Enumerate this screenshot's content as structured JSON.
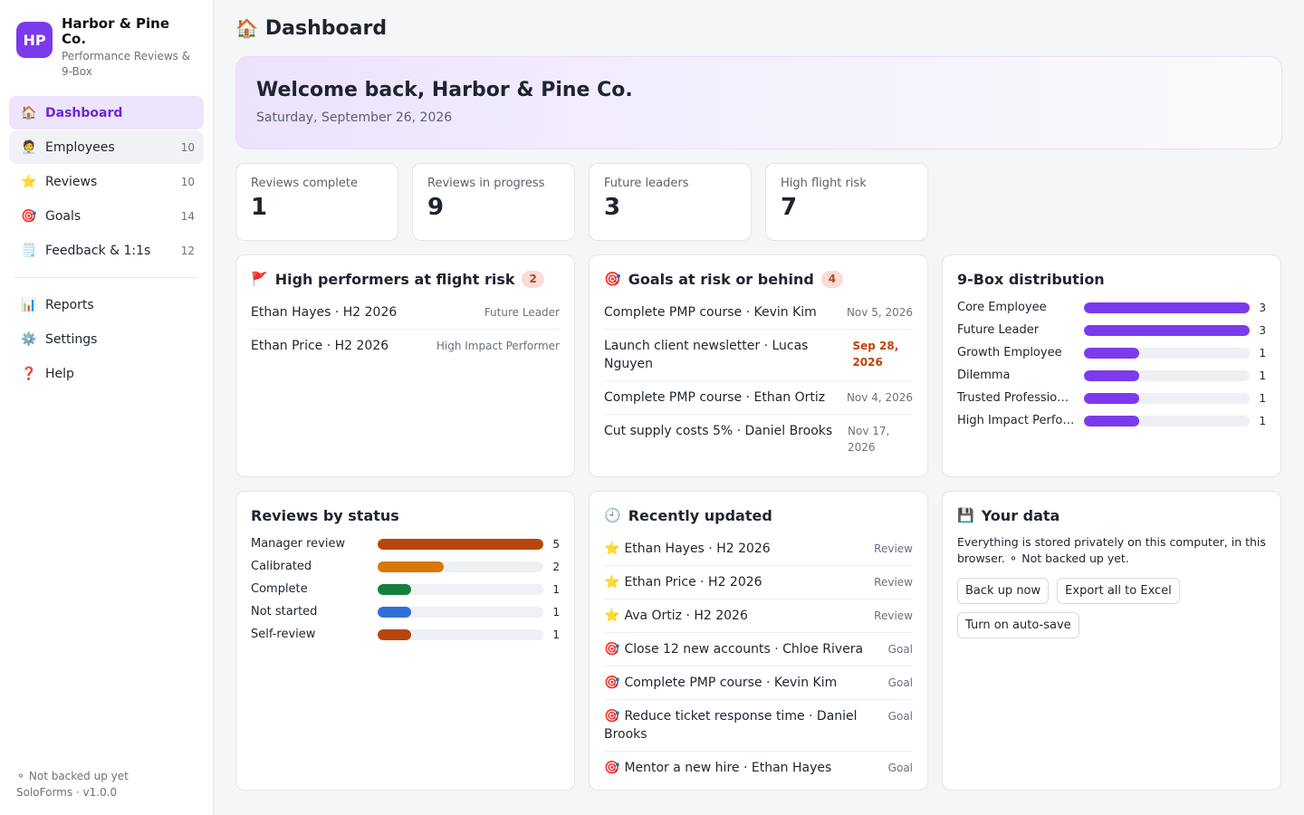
{
  "brand": {
    "logo": "HP",
    "name": "Harbor & Pine Co.",
    "subtitle": "Performance Reviews & 9-Box"
  },
  "nav": {
    "primary": [
      {
        "icon": "🏠",
        "icon_name": "home-icon",
        "label": "Dashboard",
        "count": ""
      },
      {
        "icon": "🧑‍💼",
        "icon_name": "person-icon",
        "label": "Employees",
        "count": "10"
      },
      {
        "icon": "⭐",
        "icon_name": "star-icon",
        "label": "Reviews",
        "count": "10"
      },
      {
        "icon": "🎯",
        "icon_name": "target-icon",
        "label": "Goals",
        "count": "14"
      },
      {
        "icon": "🗒️",
        "icon_name": "notepad-icon",
        "label": "Feedback & 1:1s",
        "count": "12"
      }
    ],
    "secondary": [
      {
        "icon": "📊",
        "icon_name": "bar-chart-icon",
        "label": "Reports"
      },
      {
        "icon": "⚙️",
        "icon_name": "gear-icon",
        "label": "Settings"
      },
      {
        "icon": "❓",
        "icon_name": "question-icon",
        "label": "Help"
      }
    ]
  },
  "footer": {
    "backup_status": "⚬ Not backed up yet",
    "version": "SoloForms · v1.0.0"
  },
  "page": {
    "icon": "🏠",
    "title": "Dashboard"
  },
  "welcome": {
    "heading": "Welcome back, Harbor & Pine Co.",
    "date": "Saturday, September 26, 2026"
  },
  "stats": [
    {
      "label": "Reviews complete",
      "value": "1"
    },
    {
      "label": "Reviews in progress",
      "value": "9"
    },
    {
      "label": "Future leaders",
      "value": "3"
    },
    {
      "label": "High flight risk",
      "value": "7"
    }
  ],
  "flight_risk": {
    "icon": "🚩",
    "title": "High performers at flight risk",
    "badge": "2",
    "items": [
      {
        "text": "Ethan Hayes · H2 2026",
        "meta": "Future Leader"
      },
      {
        "text": "Ethan Price · H2 2026",
        "meta": "High Impact Performer"
      }
    ]
  },
  "goals_risk": {
    "icon": "🎯",
    "title": "Goals at risk or behind",
    "badge": "4",
    "items": [
      {
        "text": "Complete PMP course · Kevin Kim",
        "meta": "Nov 5, 2026",
        "style": "normal"
      },
      {
        "text": "Launch client newsletter · Lucas Nguyen",
        "meta": "Sep 28, 2026",
        "style": "overdue"
      },
      {
        "text": "Complete PMP course · Ethan Ortiz",
        "meta": "Nov 4, 2026",
        "style": "normal"
      },
      {
        "text": "Cut supply costs 5% · Daniel Brooks",
        "meta": "Nov 17, 2026",
        "style": "wrap"
      }
    ]
  },
  "ninebox": {
    "title": "9-Box distribution",
    "max": 3,
    "color": "#7c3aed",
    "rows": [
      {
        "label": "Core Employee",
        "value": 3
      },
      {
        "label": "Future Leader",
        "value": 3
      },
      {
        "label": "Growth Employee",
        "value": 1
      },
      {
        "label": "Dilemma",
        "value": 1
      },
      {
        "label": "Trusted Professio…",
        "value": 1
      },
      {
        "label": "High Impact Perfo…",
        "value": 1
      }
    ]
  },
  "review_status": {
    "title": "Reviews by status",
    "max": 5,
    "rows": [
      {
        "label": "Manager review",
        "value": 5,
        "color": "#b8460b"
      },
      {
        "label": "Calibrated",
        "value": 2,
        "color": "#d97706"
      },
      {
        "label": "Complete",
        "value": 1,
        "color": "#15803d"
      },
      {
        "label": "Not started",
        "value": 1,
        "color": "#2f6fd6"
      },
      {
        "label": "Self-review",
        "value": 1,
        "color": "#b8460b"
      }
    ]
  },
  "recent": {
    "icon": "🕘",
    "title": "Recently updated",
    "items": [
      {
        "icon": "⭐",
        "icon_name": "star-icon",
        "text": "Ethan Hayes · H2 2026",
        "meta": "Review"
      },
      {
        "icon": "⭐",
        "icon_name": "star-icon",
        "text": "Ethan Price · H2 2026",
        "meta": "Review"
      },
      {
        "icon": "⭐",
        "icon_name": "star-icon",
        "text": "Ava Ortiz · H2 2026",
        "meta": "Review"
      },
      {
        "icon": "🎯",
        "icon_name": "target-icon",
        "text": "Close 12 new accounts · Chloe Rivera",
        "meta": "Goal"
      },
      {
        "icon": "🎯",
        "icon_name": "target-icon",
        "text": "Complete PMP course · Kevin Kim",
        "meta": "Goal"
      },
      {
        "icon": "🎯",
        "icon_name": "target-icon",
        "text": "Reduce ticket response time · Daniel Brooks",
        "meta": "Goal"
      },
      {
        "icon": "🎯",
        "icon_name": "target-icon",
        "text": "Mentor a new hire · Ethan Hayes",
        "meta": "Goal"
      }
    ]
  },
  "your_data": {
    "icon": "💾",
    "title": "Your data",
    "text": "Everything is stored privately on this computer, in this browser. ⚬ Not backed up yet.",
    "buttons": [
      "Back up now",
      "Export all to Excel",
      "Turn on auto-save"
    ]
  }
}
